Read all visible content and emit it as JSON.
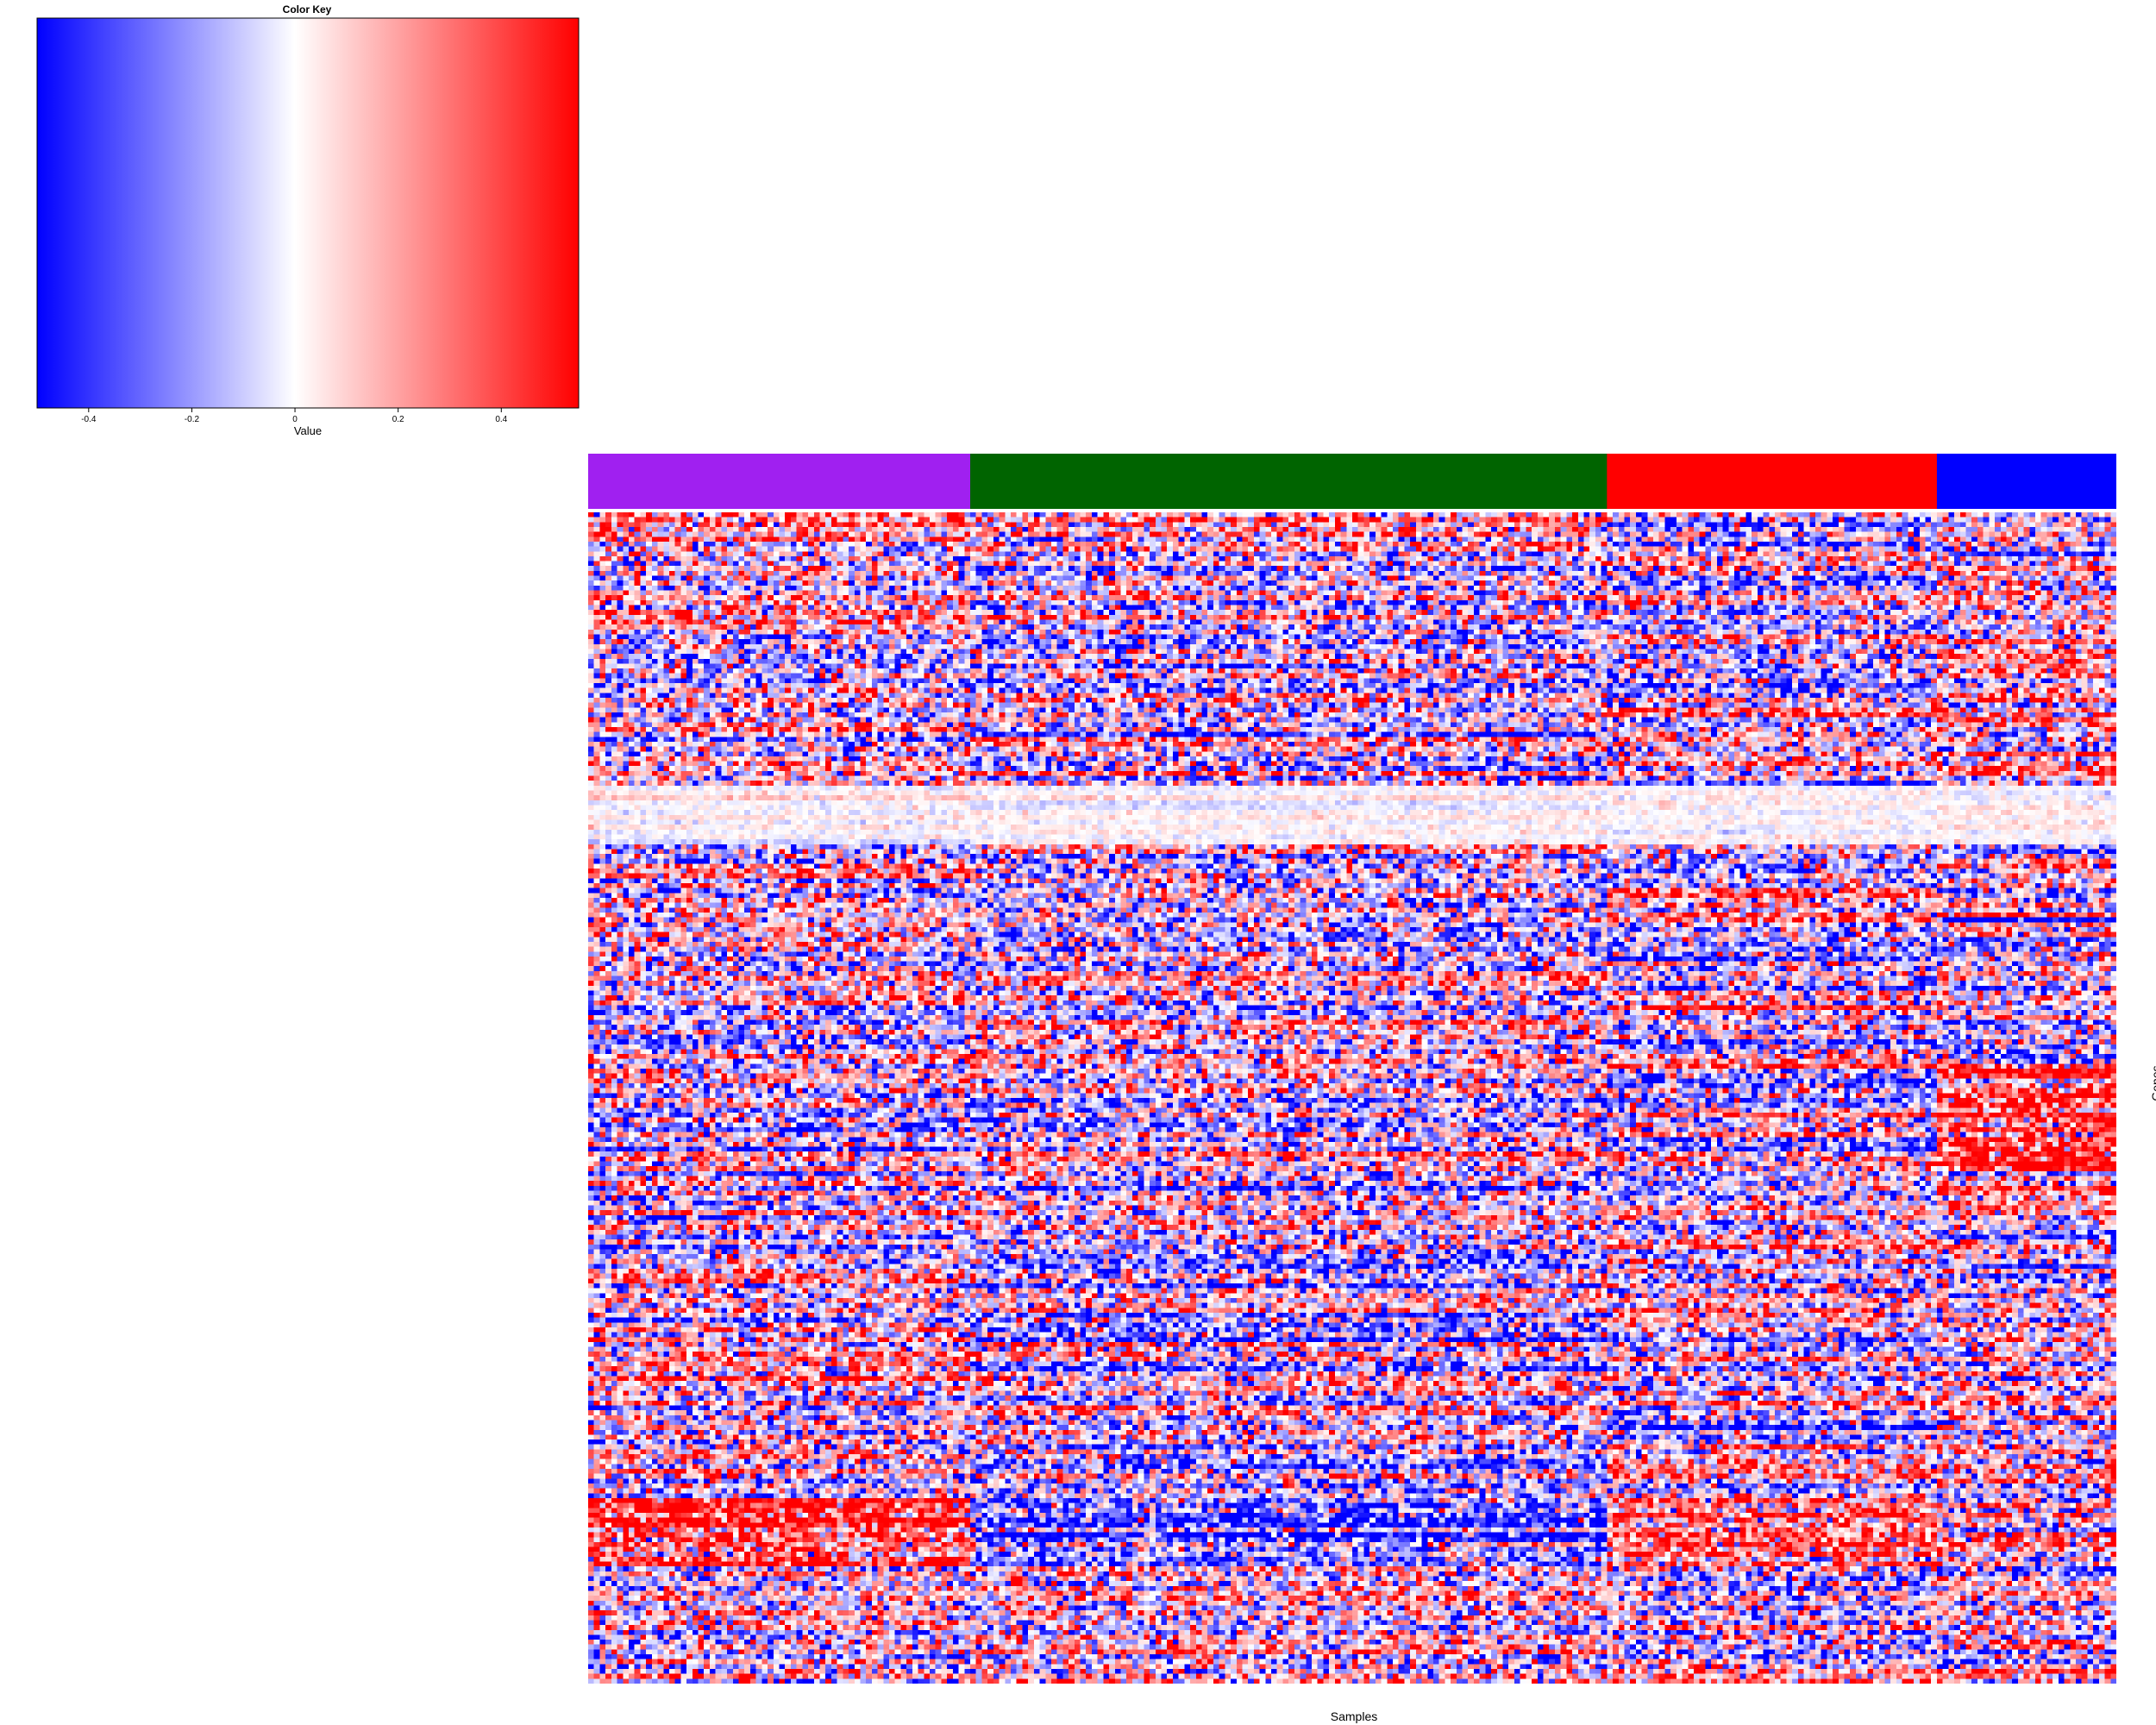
{
  "chart_data": {
    "type": "heatmap",
    "title": "",
    "xlabel": "Samples",
    "ylabel": "Genes",
    "color_key": {
      "title": "Color Key",
      "label": "Value",
      "range": [
        -0.5,
        0.55
      ],
      "ticks": [
        -0.4,
        -0.2,
        0,
        0.2,
        0.4
      ],
      "tick_labels": [
        "-0.4",
        "-0.2",
        "0",
        "0.2",
        "0.4"
      ],
      "low_color": "#0000ff",
      "mid_color": "#ffffff",
      "high_color": "#ff0000"
    },
    "column_groups": [
      {
        "color": "#a020f0",
        "count": 66
      },
      {
        "color": "#006400",
        "count": 110
      },
      {
        "color": "#ff0000",
        "count": 57
      },
      {
        "color": "#0000ff",
        "count": 31
      }
    ],
    "n_columns": 264,
    "n_rows": 240,
    "grid": false
  }
}
